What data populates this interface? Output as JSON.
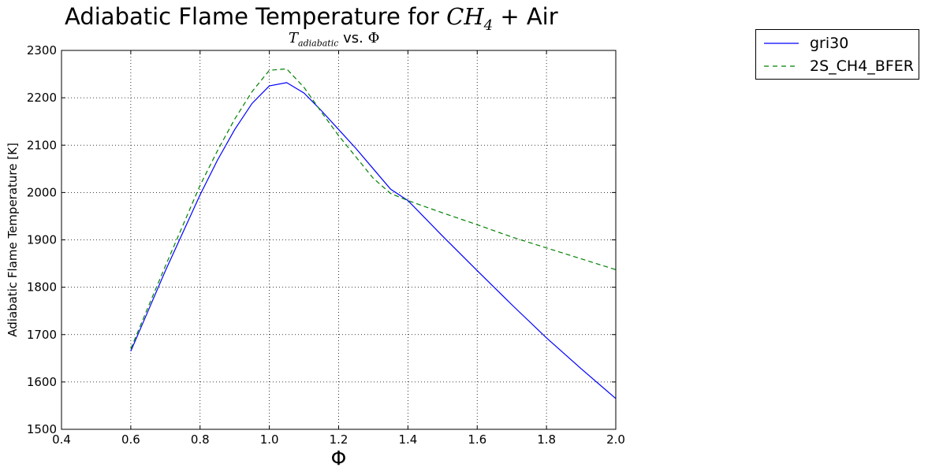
{
  "title": {
    "prefix": "Adiabatic Flame Temperature for ",
    "math_base": "CH",
    "math_sub": "4",
    "suffix": " + Air"
  },
  "subtitle": {
    "math_base": "T",
    "math_sub": "adiabatic",
    "middle": " vs. ",
    "phi": "Φ"
  },
  "chart_data": {
    "type": "line",
    "xlabel": "Φ",
    "ylabel": "Adiabatic Flame Temperature [K]",
    "xlim": [
      0.4,
      2.0
    ],
    "ylim": [
      1500,
      2300
    ],
    "x_ticks": [
      "0.4",
      "0.6",
      "0.8",
      "1.0",
      "1.2",
      "1.4",
      "1.6",
      "1.8",
      "2.0"
    ],
    "y_ticks": [
      "1500",
      "1600",
      "1700",
      "1800",
      "1900",
      "2000",
      "2100",
      "2200",
      "2300"
    ],
    "grid": true,
    "legend_position": "outside-top-right",
    "series": [
      {
        "name": "gri30",
        "color": "#0000ff",
        "style": "solid",
        "x": [
          0.6,
          0.65,
          0.7,
          0.75,
          0.8,
          0.85,
          0.9,
          0.95,
          1.0,
          1.05,
          1.1,
          1.15,
          1.2,
          1.25,
          1.3,
          1.35,
          1.4,
          1.5,
          1.6,
          1.7,
          1.8,
          1.9,
          2.0
        ],
        "y": [
          1665,
          1750,
          1835,
          1915,
          1995,
          2068,
          2133,
          2188,
          2225,
          2232,
          2210,
          2173,
          2133,
          2093,
          2050,
          2007,
          1983,
          1908,
          1835,
          1763,
          1693,
          1628,
          1565
        ]
      },
      {
        "name": "2S_CH4_BFER",
        "color": "#008000",
        "style": "dashed",
        "x": [
          0.6,
          0.65,
          0.7,
          0.75,
          0.8,
          0.85,
          0.9,
          0.95,
          1.0,
          1.05,
          1.1,
          1.15,
          1.2,
          1.25,
          1.3,
          1.35,
          1.4,
          1.5,
          1.6,
          1.7,
          1.8,
          1.9,
          2.0
        ],
        "y": [
          1670,
          1758,
          1845,
          1930,
          2015,
          2088,
          2155,
          2213,
          2258,
          2261,
          2222,
          2170,
          2120,
          2075,
          2030,
          1998,
          1983,
          1957,
          1932,
          1906,
          1883,
          1860,
          1837
        ]
      }
    ]
  }
}
